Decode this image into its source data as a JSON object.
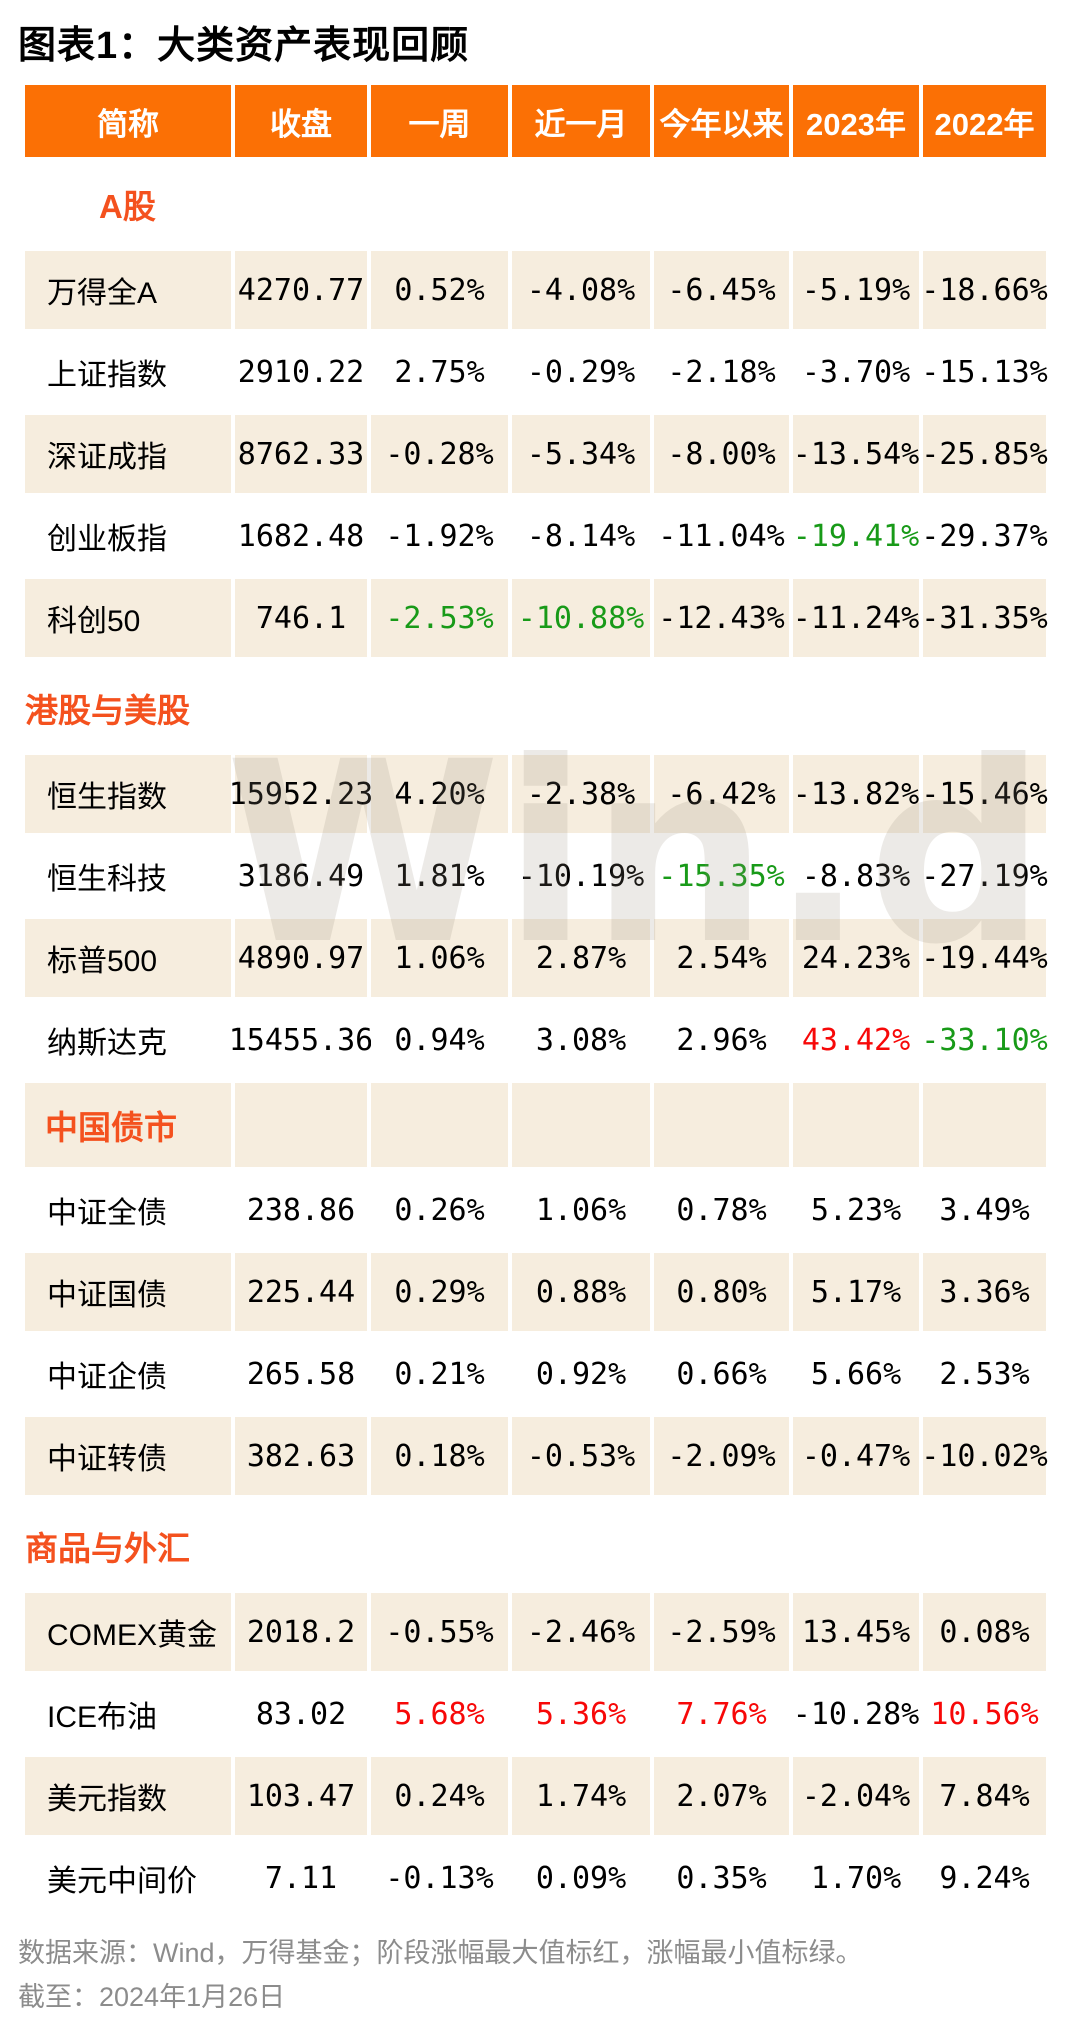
{
  "page_title": "图表1：大类资产表现回顾",
  "watermark": "Win.d",
  "colors": {
    "header_bg": "#fb7005",
    "section_text": "#f4511e",
    "row_beige": "#f6edde",
    "highlight_red": "#f70808",
    "highlight_green": "#189a18",
    "footer_gray": "#8c8c8c"
  },
  "chart_data": {
    "type": "table",
    "title": "图表1：大类资产表现回顾",
    "columns": [
      "简称",
      "收盘",
      "一周",
      "近一月",
      "今年以来",
      "2023年",
      "2022年"
    ],
    "highlight_rules": {
      "red": "阶段涨幅最大值标红",
      "green": "涨幅最小值标绿"
    },
    "sections": [
      {
        "label": "A股",
        "label_style": "indent",
        "rows": [
          {
            "name": "万得全A",
            "values": [
              "4270.77",
              "0.52%",
              "-4.08%",
              "-6.45%",
              "-5.19%",
              "-18.66%"
            ],
            "marks": {}
          },
          {
            "name": "上证指数",
            "values": [
              "2910.22",
              "2.75%",
              "-0.29%",
              "-2.18%",
              "-3.70%",
              "-15.13%"
            ],
            "marks": {}
          },
          {
            "name": "深证成指",
            "values": [
              "8762.33",
              "-0.28%",
              "-5.34%",
              "-8.00%",
              "-13.54%",
              "-25.85%"
            ],
            "marks": {}
          },
          {
            "name": "创业板指",
            "values": [
              "1682.48",
              "-1.92%",
              "-8.14%",
              "-11.04%",
              "-19.41%",
              "-29.37%"
            ],
            "marks": {
              "4": "green"
            }
          },
          {
            "name": "科创50",
            "values": [
              "746.1",
              "-2.53%",
              "-10.88%",
              "-12.43%",
              "-11.24%",
              "-31.35%"
            ],
            "marks": {
              "1": "green",
              "2": "green"
            }
          }
        ]
      },
      {
        "label": "港股与美股",
        "label_style": "left",
        "rows": [
          {
            "name": "恒生指数",
            "values": [
              "15952.23",
              "4.20%",
              "-2.38%",
              "-6.42%",
              "-13.82%",
              "-15.46%"
            ],
            "marks": {}
          },
          {
            "name": "恒生科技",
            "values": [
              "3186.49",
              "1.81%",
              "-10.19%",
              "-15.35%",
              "-8.83%",
              "-27.19%"
            ],
            "marks": {
              "3": "green"
            }
          },
          {
            "name": "标普500",
            "values": [
              "4890.97",
              "1.06%",
              "2.87%",
              "2.54%",
              "24.23%",
              "-19.44%"
            ],
            "marks": {}
          },
          {
            "name": "纳斯达克",
            "values": [
              "15455.36",
              "0.94%",
              "3.08%",
              "2.96%",
              "43.42%",
              "-33.10%"
            ],
            "marks": {
              "4": "red",
              "5": "green"
            }
          }
        ]
      },
      {
        "label": "中国债市",
        "label_style": "band",
        "rows": [
          {
            "name": "中证全债",
            "values": [
              "238.86",
              "0.26%",
              "1.06%",
              "0.78%",
              "5.23%",
              "3.49%"
            ],
            "marks": {}
          },
          {
            "name": "中证国债",
            "values": [
              "225.44",
              "0.29%",
              "0.88%",
              "0.80%",
              "5.17%",
              "3.36%"
            ],
            "marks": {}
          },
          {
            "name": "中证企债",
            "values": [
              "265.58",
              "0.21%",
              "0.92%",
              "0.66%",
              "5.66%",
              "2.53%"
            ],
            "marks": {}
          },
          {
            "name": "中证转债",
            "values": [
              "382.63",
              "0.18%",
              "-0.53%",
              "-2.09%",
              "-0.47%",
              "-10.02%"
            ],
            "marks": {}
          }
        ]
      },
      {
        "label": "商品与外汇",
        "label_style": "left",
        "rows": [
          {
            "name": "COMEX黄金",
            "values": [
              "2018.2",
              "-0.55%",
              "-2.46%",
              "-2.59%",
              "13.45%",
              "0.08%"
            ],
            "marks": {}
          },
          {
            "name": "ICE布油",
            "values": [
              "83.02",
              "5.68%",
              "5.36%",
              "7.76%",
              "-10.28%",
              "10.56%"
            ],
            "marks": {
              "1": "red",
              "2": "red",
              "3": "red",
              "5": "red"
            }
          },
          {
            "name": "美元指数",
            "values": [
              "103.47",
              "0.24%",
              "1.74%",
              "2.07%",
              "-2.04%",
              "7.84%"
            ],
            "marks": {}
          },
          {
            "name": "美元中间价",
            "values": [
              "7.11",
              "-0.13%",
              "0.09%",
              "0.35%",
              "1.70%",
              "9.24%"
            ],
            "marks": {}
          }
        ]
      }
    ]
  },
  "footer": {
    "line1": "数据来源：Wind，万得基金；阶段涨幅最大值标红，涨幅最小值标绿。",
    "line2": "截至：2024年1月26日"
  }
}
